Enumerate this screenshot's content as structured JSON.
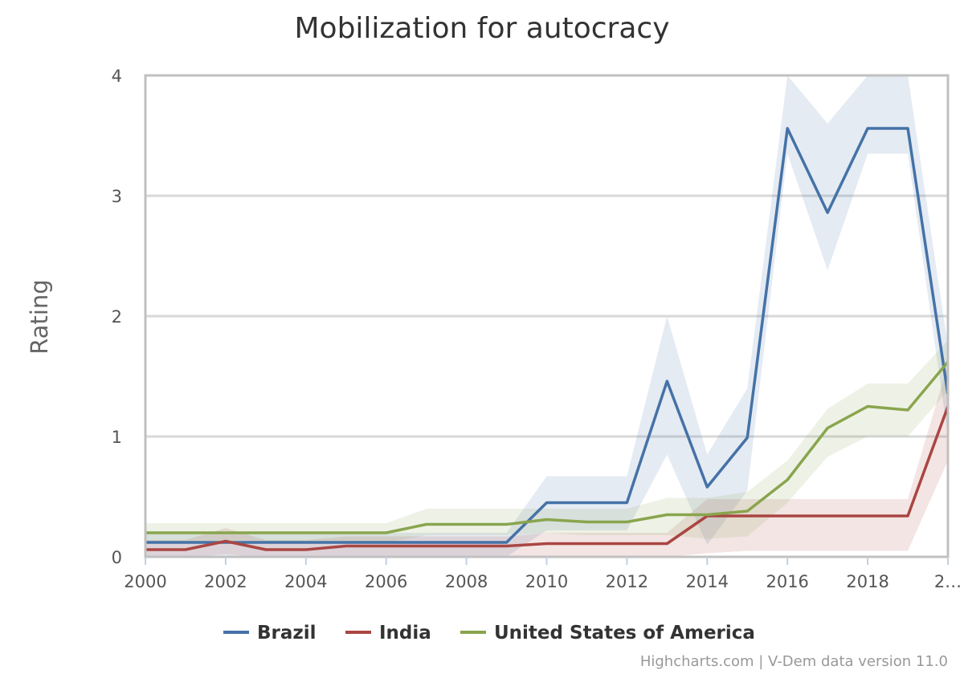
{
  "chart_data": {
    "type": "line",
    "title": "Mobilization for autocracy",
    "ylabel": "Rating",
    "xlabel": "",
    "x": [
      2000,
      2001,
      2002,
      2003,
      2004,
      2005,
      2006,
      2007,
      2008,
      2009,
      2010,
      2011,
      2012,
      2013,
      2014,
      2015,
      2016,
      2017,
      2018,
      2019,
      2020
    ],
    "x_tick_labels": [
      "2000",
      "2002",
      "2004",
      "2006",
      "2008",
      "2010",
      "2012",
      "2014",
      "2016",
      "2018",
      "2…"
    ],
    "ylim": [
      0,
      4
    ],
    "y_ticks": [
      "0",
      "1",
      "2",
      "3",
      "4"
    ],
    "grid": true,
    "legend_position": "bottom-center",
    "series": [
      {
        "name": "Brazil",
        "color": "#4572a7",
        "values": [
          0.12,
          0.12,
          0.12,
          0.12,
          0.12,
          0.12,
          0.12,
          0.12,
          0.12,
          0.12,
          0.45,
          0.45,
          0.45,
          1.46,
          0.58,
          0.99,
          3.56,
          2.86,
          3.56,
          3.56,
          1.35
        ],
        "lower": [
          0.0,
          0.0,
          0.0,
          0.0,
          0.0,
          0.0,
          0.0,
          0.0,
          0.0,
          0.0,
          0.22,
          0.22,
          0.22,
          0.85,
          0.1,
          0.55,
          3.35,
          2.38,
          3.35,
          3.35,
          1.0
        ],
        "upper": [
          0.2,
          0.2,
          0.2,
          0.2,
          0.2,
          0.2,
          0.2,
          0.2,
          0.2,
          0.2,
          0.67,
          0.67,
          0.67,
          2.0,
          0.85,
          1.4,
          4.0,
          3.6,
          4.0,
          4.0,
          1.75
        ]
      },
      {
        "name": "India",
        "color": "#aa4643",
        "values": [
          0.06,
          0.06,
          0.13,
          0.06,
          0.06,
          0.09,
          0.09,
          0.09,
          0.09,
          0.09,
          0.11,
          0.11,
          0.11,
          0.11,
          0.34,
          0.34,
          0.34,
          0.34,
          0.34,
          0.34,
          1.25
        ],
        "lower": [
          0.0,
          0.0,
          0.02,
          0.0,
          0.0,
          0.0,
          0.0,
          0.0,
          0.0,
          0.0,
          0.0,
          0.0,
          0.0,
          0.0,
          0.03,
          0.05,
          0.05,
          0.05,
          0.05,
          0.05,
          0.8
        ],
        "upper": [
          0.14,
          0.14,
          0.24,
          0.14,
          0.14,
          0.17,
          0.17,
          0.17,
          0.17,
          0.17,
          0.2,
          0.2,
          0.2,
          0.2,
          0.48,
          0.48,
          0.48,
          0.48,
          0.48,
          0.48,
          1.6
        ]
      },
      {
        "name": "United States of America",
        "color": "#89a54e",
        "values": [
          0.2,
          0.2,
          0.2,
          0.2,
          0.2,
          0.2,
          0.2,
          0.27,
          0.27,
          0.27,
          0.31,
          0.29,
          0.29,
          0.35,
          0.35,
          0.38,
          0.64,
          1.07,
          1.25,
          1.22,
          1.62
        ],
        "lower": [
          0.12,
          0.12,
          0.12,
          0.12,
          0.12,
          0.12,
          0.12,
          0.18,
          0.18,
          0.18,
          0.2,
          0.18,
          0.18,
          0.18,
          0.15,
          0.17,
          0.45,
          0.83,
          1.0,
          1.0,
          1.38
        ],
        "upper": [
          0.28,
          0.28,
          0.28,
          0.28,
          0.28,
          0.28,
          0.28,
          0.4,
          0.4,
          0.4,
          0.4,
          0.4,
          0.4,
          0.49,
          0.49,
          0.54,
          0.8,
          1.23,
          1.44,
          1.44,
          1.8
        ]
      }
    ]
  },
  "credits": "Highcharts.com | V-Dem data version 11.0"
}
